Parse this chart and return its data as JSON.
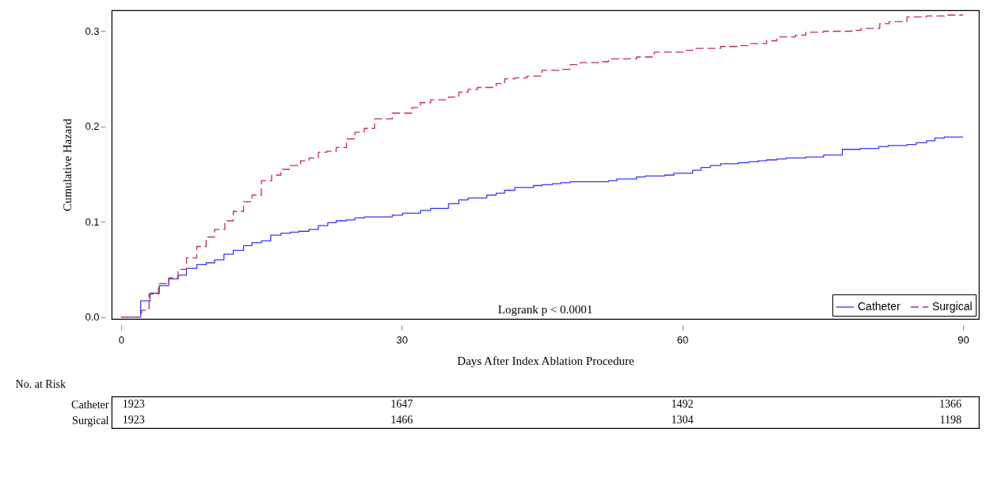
{
  "chart_data": {
    "type": "step",
    "xlabel": "Days After Index Ablation Procedure",
    "ylabel": "Cumulative Hazard",
    "xlim": [
      -1,
      91.7
    ],
    "xticks": [
      0,
      30,
      60,
      90
    ],
    "ylim": [
      -0.002,
      0.322
    ],
    "yticks": [
      {
        "value": 0,
        "label": "0.0"
      },
      0.1,
      0.2,
      0.3
    ],
    "grid": false,
    "legend": "bottom right",
    "marker": "none",
    "series": [
      {
        "name": "Catheter",
        "color": "#3a3af0",
        "line_style": "solid",
        "x": [
          0,
          2.1,
          3.1,
          4.1,
          5.1,
          6.1,
          7.0,
          8.1,
          9.1,
          10.0,
          11.0,
          12.0,
          13.1,
          14.0,
          15.0,
          16.0,
          17.1,
          18.1,
          19.0,
          20.1,
          21.1,
          22.1,
          23.0,
          24.1,
          25.0,
          26.0,
          29.0,
          30.1,
          32.0,
          33.1,
          35.0,
          36.1,
          37.1,
          39.1,
          40.1,
          41.0,
          42.1,
          44.1,
          45.0,
          46.1,
          47.0,
          48.0,
          52.1,
          53.0,
          55.1,
          56.0,
          58.1,
          59.1,
          61.1,
          62.0,
          63.0,
          64.1,
          66.0,
          67.1,
          68.1,
          69.0,
          70.1,
          71.1,
          73.2,
          75.1,
          77.1,
          79.0,
          81.0,
          82.0,
          84.0,
          85.0,
          86.1,
          87.0,
          88.0,
          90.0
        ],
        "values": [
          0,
          0.017,
          0.025,
          0.033,
          0.04,
          0.044,
          0.051,
          0.055,
          0.057,
          0.06,
          0.066,
          0.07,
          0.075,
          0.078,
          0.08,
          0.086,
          0.088,
          0.089,
          0.09,
          0.092,
          0.096,
          0.099,
          0.101,
          0.102,
          0.104,
          0.105,
          0.107,
          0.109,
          0.112,
          0.114,
          0.119,
          0.123,
          0.125,
          0.128,
          0.13,
          0.133,
          0.136,
          0.138,
          0.139,
          0.14,
          0.141,
          0.142,
          0.143,
          0.145,
          0.147,
          0.148,
          0.149,
          0.151,
          0.154,
          0.157,
          0.159,
          0.161,
          0.162,
          0.163,
          0.164,
          0.165,
          0.166,
          0.167,
          0.168,
          0.17,
          0.176,
          0.177,
          0.179,
          0.18,
          0.181,
          0.183,
          0.185,
          0.188,
          0.189,
          0.189
        ]
      },
      {
        "name": "Surgical",
        "color": "#c0304a",
        "line_style": "dashed",
        "x": [
          0,
          2.2,
          3.0,
          4.0,
          5.1,
          6.1,
          7.0,
          8.1,
          9.1,
          10.0,
          11.1,
          12.0,
          13.1,
          14.0,
          15.0,
          16.1,
          17.1,
          18.1,
          19.2,
          20.1,
          21.1,
          22.0,
          23.0,
          24.1,
          25.0,
          26.0,
          27.1,
          29.0,
          31.1,
          32.0,
          33.1,
          35.0,
          36.1,
          37.1,
          38.1,
          40.1,
          41.0,
          42.1,
          43.4,
          45.0,
          47.0,
          48.0,
          49.1,
          51.0,
          52.1,
          55.1,
          57.0,
          60.1,
          61.1,
          64.1,
          66.0,
          67.1,
          69.0,
          70.1,
          72.1,
          73.2,
          75.1,
          78.1,
          79.1,
          81.1,
          82.1,
          84.0,
          86.1,
          88.0,
          90.0
        ],
        "values": [
          0,
          0.007,
          0.024,
          0.035,
          0.041,
          0.05,
          0.062,
          0.074,
          0.084,
          0.092,
          0.101,
          0.111,
          0.121,
          0.128,
          0.143,
          0.149,
          0.155,
          0.159,
          0.164,
          0.167,
          0.173,
          0.174,
          0.178,
          0.187,
          0.194,
          0.198,
          0.208,
          0.214,
          0.22,
          0.225,
          0.228,
          0.231,
          0.236,
          0.239,
          0.241,
          0.245,
          0.25,
          0.251,
          0.253,
          0.259,
          0.26,
          0.265,
          0.267,
          0.268,
          0.271,
          0.273,
          0.278,
          0.28,
          0.282,
          0.284,
          0.285,
          0.287,
          0.29,
          0.294,
          0.296,
          0.299,
          0.3,
          0.301,
          0.303,
          0.308,
          0.31,
          0.315,
          0.316,
          0.317,
          0.317
        ]
      }
    ],
    "annotations": [
      "Logrank p < 0.0001",
      "No. at Risk",
      "1923",
      "1647",
      "1492",
      "1366",
      "1923",
      "1466",
      "1304",
      "1198"
    ]
  }
}
